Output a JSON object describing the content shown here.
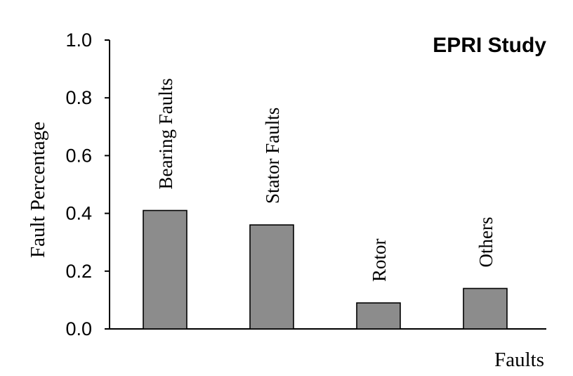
{
  "chart_data": {
    "type": "bar",
    "title": "EPRI Study",
    "xlabel": "Faults",
    "ylabel": "Fault Percentage",
    "categories": [
      "Bearing Faults",
      "Stator Faults",
      "Rotor",
      "Others"
    ],
    "values": [
      0.41,
      0.36,
      0.09,
      0.14
    ],
    "ylim": [
      0,
      1.0
    ],
    "yticks": [
      "0.0",
      "0.2",
      "0.4",
      "0.6",
      "0.8",
      "1.0"
    ],
    "grid": false,
    "bar_color": "#8c8c8c",
    "bar_labels_rotated": true
  }
}
